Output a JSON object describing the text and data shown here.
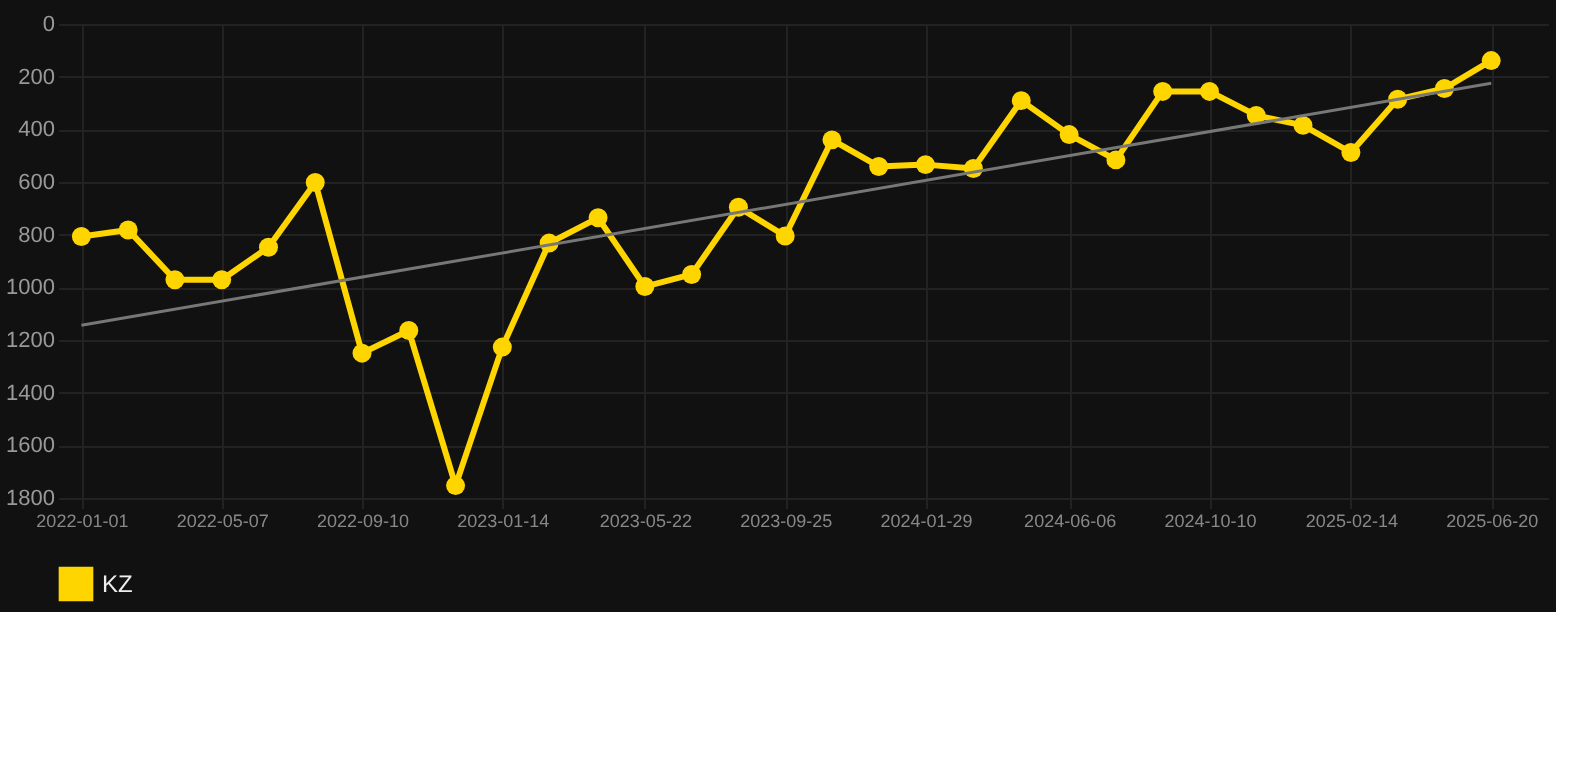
{
  "chart_data": {
    "type": "line",
    "x": [
      "2022-01-01",
      "2022-02-12",
      "2022-03-26",
      "2022-05-07",
      "2022-06-18",
      "2022-07-30",
      "2022-09-10",
      "2022-10-22",
      "2022-12-03",
      "2023-01-14",
      "2023-02-25",
      "2023-04-10",
      "2023-05-22",
      "2023-07-03",
      "2023-08-14",
      "2023-09-25",
      "2023-11-06",
      "2023-12-18",
      "2024-01-29",
      "2024-03-12",
      "2024-04-24",
      "2024-06-06",
      "2024-07-18",
      "2024-08-29",
      "2024-10-10",
      "2024-11-21",
      "2025-01-02",
      "2025-02-14",
      "2025-03-28",
      "2025-05-09",
      "2025-06-20"
    ],
    "series": [
      {
        "name": "KZ",
        "color": "#ffd500",
        "values": [
          807,
          782,
          971,
          971,
          848,
          602,
          1250,
          1164,
          1753,
          1227,
          832,
          736,
          997,
          951,
          696,
          805,
          440,
          541,
          534,
          549,
          291,
          420,
          516,
          256,
          256,
          347,
          385,
          488,
          286,
          245,
          139
        ]
      },
      {
        "type": "line",
        "color": "#777777",
        "marker": "none",
        "x": [
          "2022-01-01",
          "2025-06-20"
        ],
        "values": [
          1144,
          225
        ]
      }
    ],
    "ylim": [
      1800,
      0
    ],
    "yticks": [
      0,
      200,
      400,
      600,
      800,
      1000,
      1200,
      1400,
      1600,
      1800
    ],
    "xlim": [
      "2021-12-11",
      "2025-08-10"
    ],
    "xticks": [
      "2022-01-01",
      "2022-05-07",
      "2022-09-10",
      "2023-01-14",
      "2023-05-22",
      "2023-09-25",
      "2024-01-29",
      "2024-06-06",
      "2024-10-10",
      "2025-02-14",
      "2025-06-20"
    ],
    "grid": true,
    "legend": "bottom",
    "marker": "circle",
    "line_style": "solid"
  }
}
